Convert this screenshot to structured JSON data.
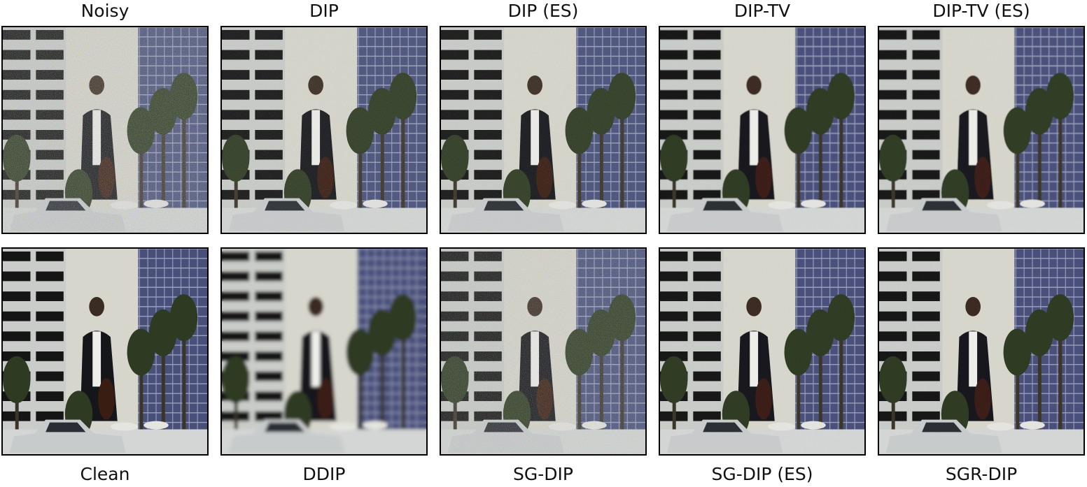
{
  "figure": {
    "top_row_labels": [
      "Noisy",
      "DIP",
      "DIP (ES)",
      "DIP-TV",
      "DIP-TV (ES)"
    ],
    "bottom_row_labels": [
      "Clean",
      "DDIP",
      "SG-DIP",
      "SG-DIP (ES)",
      "SGR-DIP"
    ]
  },
  "panels": [
    {
      "name": "Noisy",
      "row": "top",
      "noise": 0.9,
      "blur": 0
    },
    {
      "name": "DIP",
      "row": "top",
      "noise": 0.35,
      "blur": 0
    },
    {
      "name": "DIP (ES)",
      "row": "top",
      "noise": 0.3,
      "blur": 0
    },
    {
      "name": "DIP-TV",
      "row": "top",
      "noise": 0.05,
      "blur": 0.6
    },
    {
      "name": "DIP-TV (ES)",
      "row": "top",
      "noise": 0.08,
      "blur": 0.5
    },
    {
      "name": "Clean",
      "row": "bottom",
      "noise": 0,
      "blur": 0
    },
    {
      "name": "DDIP",
      "row": "bottom",
      "noise": 0,
      "blur": 2.5
    },
    {
      "name": "SG-DIP",
      "row": "bottom",
      "noise": 0.75,
      "blur": 0
    },
    {
      "name": "SG-DIP (ES)",
      "row": "bottom",
      "noise": 0.05,
      "blur": 0.4
    },
    {
      "name": "SGR-DIP",
      "row": "bottom",
      "noise": 0.03,
      "blur": 0.4
    }
  ]
}
